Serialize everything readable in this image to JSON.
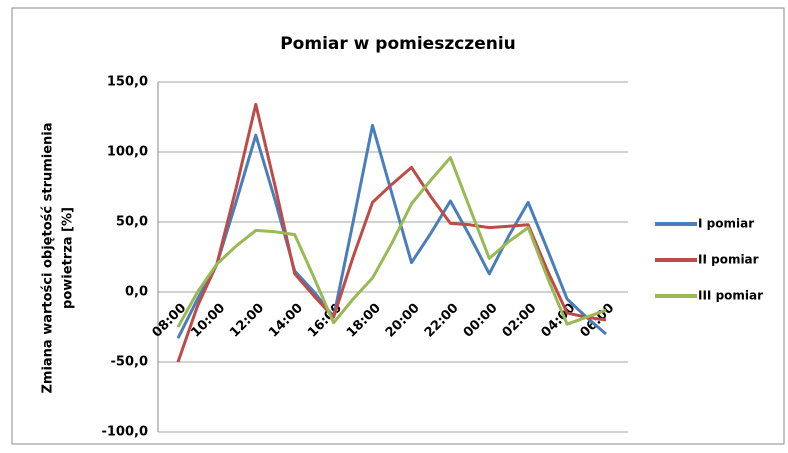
{
  "chart_data": {
    "type": "line",
    "title": "Pomiar w pomieszczeniu",
    "ylabel": [
      "Zmiana wartości objętość strumienia",
      "powietrza [%]"
    ],
    "categories": [
      "08:00",
      null,
      "10:00",
      null,
      "12:00",
      null,
      "14:00",
      null,
      "16:00",
      null,
      "18:00",
      null,
      "20:00",
      null,
      "22:00",
      null,
      "00:00",
      null,
      "02:00",
      null,
      "04:00",
      null,
      "06:00"
    ],
    "series": [
      {
        "name": "I pomiar",
        "color": "#4a7ebb",
        "values": [
          -33,
          -5,
          20,
          65,
          112,
          65,
          15,
          0,
          -18,
          50,
          119,
          70,
          21,
          42,
          65,
          40,
          13,
          40,
          64,
          30,
          -5,
          -18,
          -30
        ]
      },
      {
        "name": "II pomiar",
        "color": "#be4b48",
        "values": [
          -50,
          -10,
          20,
          75,
          134,
          75,
          13,
          -3,
          -18,
          25,
          64,
          77,
          89,
          68,
          49,
          48,
          46,
          47,
          48,
          15,
          -15,
          -18,
          -20
        ]
      },
      {
        "name": "III pomiar",
        "color": "#98b954",
        "values": [
          -25,
          0,
          20,
          33,
          44,
          43,
          41,
          10,
          -22,
          -5,
          10,
          35,
          63,
          80,
          96,
          60,
          24,
          36,
          46,
          10,
          -23,
          -18,
          -13
        ]
      }
    ],
    "ylim": [
      -100,
      150
    ],
    "yticks": [
      {
        "value": -100,
        "label": "-100,0"
      },
      {
        "value": -50,
        "label": "-50,0"
      },
      {
        "value": 0,
        "label": "0,0"
      },
      {
        "value": 50,
        "label": "50,0"
      },
      {
        "value": 100,
        "label": "100,0"
      },
      {
        "value": 150,
        "label": "150,0"
      }
    ],
    "grid": true,
    "legend": "right"
  }
}
